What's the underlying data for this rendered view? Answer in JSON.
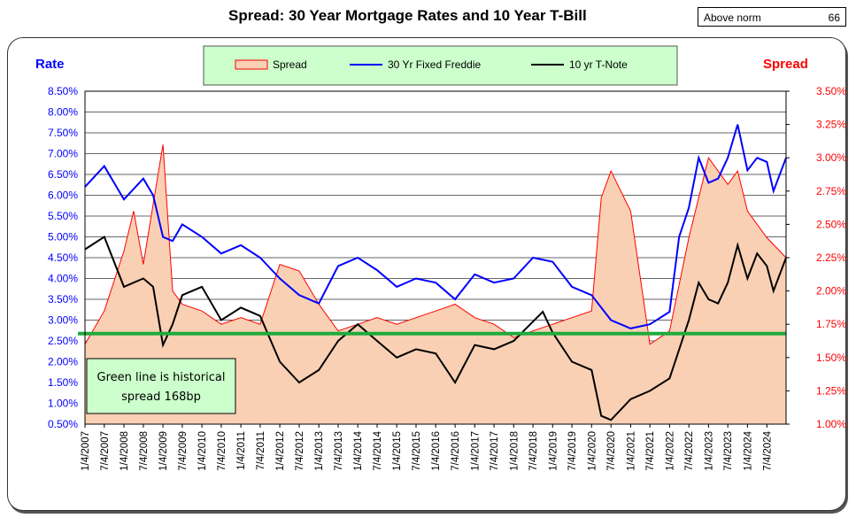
{
  "title": "Spread:  30 Year Mortgage Rates and 10 Year T-Bill",
  "norm_box": {
    "label": "Above norm",
    "value": "66"
  },
  "note": [
    "Green line is historical",
    "spread 168bp"
  ],
  "chart_data": {
    "type": "line",
    "ylabel_left": "Rate",
    "ylabel_right": "Spread",
    "ylim_left": [
      0.5,
      8.5
    ],
    "ylim_right": [
      1.0,
      3.5
    ],
    "yticks_left": [
      "0.50%",
      "1.00%",
      "1.50%",
      "2.00%",
      "2.50%",
      "3.00%",
      "3.50%",
      "4.00%",
      "4.50%",
      "5.00%",
      "5.50%",
      "6.00%",
      "6.50%",
      "7.00%",
      "7.50%",
      "8.00%",
      "8.50%"
    ],
    "yticks_right": [
      "1.00%",
      "1.25%",
      "1.50%",
      "1.75%",
      "2.00%",
      "2.25%",
      "2.50%",
      "2.75%",
      "3.00%",
      "3.25%",
      "3.50%"
    ],
    "xticks": [
      "1/4/2007",
      "7/4/2007",
      "1/4/2008",
      "7/4/2008",
      "1/4/2009",
      "7/4/2009",
      "1/4/2010",
      "7/4/2010",
      "1/4/2011",
      "7/4/2011",
      "1/4/2012",
      "7/4/2012",
      "1/4/2013",
      "7/4/2013",
      "1/4/2014",
      "7/4/2014",
      "1/4/2015",
      "7/4/2015",
      "1/4/2016",
      "7/4/2016",
      "1/4/2017",
      "7/4/2017",
      "1/4/2018",
      "7/4/2018",
      "1/4/2019",
      "7/4/2019",
      "1/4/2020",
      "7/4/2020",
      "1/4/2021",
      "7/4/2021",
      "1/4/2022",
      "7/4/2022",
      "1/4/2023",
      "7/4/2023",
      "1/4/2024",
      "7/4/2024"
    ],
    "x_range": [
      "1/4/2007",
      "12/31/2024"
    ],
    "historical_spread": 1.68,
    "legend_position": "top-center",
    "grid": true,
    "series": [
      {
        "name": "Spread",
        "axis": "right",
        "style": "area",
        "color": "#f9d0b4",
        "edge_color": "#ff0000",
        "x": [
          "1/4/2007",
          "7/4/2007",
          "1/4/2008",
          "4/4/2008",
          "7/4/2008",
          "1/4/2009",
          "4/4/2009",
          "7/4/2009",
          "1/4/2010",
          "7/4/2010",
          "1/4/2011",
          "7/4/2011",
          "1/4/2012",
          "7/4/2012",
          "1/4/2013",
          "7/4/2013",
          "1/4/2014",
          "7/4/2014",
          "1/4/2015",
          "7/4/2015",
          "1/4/2016",
          "7/4/2016",
          "1/4/2017",
          "7/4/2017",
          "1/4/2018",
          "7/4/2018",
          "1/4/2019",
          "7/4/2019",
          "1/4/2020",
          "4/4/2020",
          "7/4/2020",
          "1/4/2021",
          "7/4/2021",
          "1/4/2022",
          "7/4/2022",
          "10/4/2022",
          "1/4/2023",
          "7/4/2023",
          "10/4/2023",
          "1/4/2024",
          "7/4/2024",
          "12/31/2024"
        ],
        "values": [
          1.6,
          1.85,
          2.3,
          2.6,
          2.2,
          3.1,
          2.0,
          1.9,
          1.85,
          1.75,
          1.8,
          1.75,
          2.2,
          2.15,
          1.9,
          1.7,
          1.75,
          1.8,
          1.75,
          1.8,
          1.85,
          1.9,
          1.8,
          1.75,
          1.65,
          1.7,
          1.75,
          1.8,
          1.85,
          2.7,
          2.9,
          2.6,
          1.6,
          1.7,
          2.4,
          2.7,
          3.0,
          2.8,
          2.9,
          2.6,
          2.4,
          2.25
        ]
      },
      {
        "name": "30 Yr Fixed Freddie",
        "axis": "left",
        "color": "#0000ff",
        "x": [
          "1/4/2007",
          "7/4/2007",
          "1/4/2008",
          "7/4/2008",
          "10/4/2008",
          "1/4/2009",
          "4/4/2009",
          "7/4/2009",
          "1/4/2010",
          "7/4/2010",
          "1/4/2011",
          "7/4/2011",
          "1/4/2012",
          "7/4/2012",
          "1/4/2013",
          "7/4/2013",
          "1/4/2014",
          "7/4/2014",
          "1/4/2015",
          "7/4/2015",
          "1/4/2016",
          "7/4/2016",
          "1/4/2017",
          "7/4/2017",
          "1/4/2018",
          "7/4/2018",
          "1/4/2019",
          "7/4/2019",
          "1/4/2020",
          "7/4/2020",
          "1/4/2021",
          "7/4/2021",
          "1/4/2022",
          "4/4/2022",
          "7/4/2022",
          "10/4/2022",
          "1/4/2023",
          "4/4/2023",
          "7/4/2023",
          "10/4/2023",
          "1/4/2024",
          "4/4/2024",
          "7/4/2024",
          "9/4/2024",
          "12/31/2024"
        ],
        "values": [
          6.2,
          6.7,
          5.9,
          6.4,
          6.0,
          5.0,
          4.9,
          5.3,
          5.0,
          4.6,
          4.8,
          4.5,
          4.0,
          3.6,
          3.4,
          4.3,
          4.5,
          4.2,
          3.8,
          4.0,
          3.9,
          3.5,
          4.1,
          3.9,
          4.0,
          4.5,
          4.4,
          3.8,
          3.6,
          3.0,
          2.8,
          2.9,
          3.2,
          5.0,
          5.7,
          6.9,
          6.3,
          6.4,
          6.9,
          7.7,
          6.6,
          6.9,
          6.8,
          6.1,
          6.9
        ]
      },
      {
        "name": "10 yr T-Note",
        "axis": "left",
        "color": "#000000",
        "x": [
          "1/4/2007",
          "7/4/2007",
          "1/4/2008",
          "7/4/2008",
          "10/4/2008",
          "1/4/2009",
          "4/4/2009",
          "7/4/2009",
          "1/4/2010",
          "7/4/2010",
          "1/4/2011",
          "7/4/2011",
          "1/4/2012",
          "7/4/2012",
          "1/4/2013",
          "7/4/2013",
          "1/4/2014",
          "7/4/2014",
          "1/4/2015",
          "7/4/2015",
          "1/4/2016",
          "7/4/2016",
          "1/4/2017",
          "7/4/2017",
          "1/4/2018",
          "10/4/2018",
          "1/4/2019",
          "7/4/2019",
          "1/4/2020",
          "4/4/2020",
          "7/4/2020",
          "1/4/2021",
          "7/4/2021",
          "1/4/2022",
          "7/4/2022",
          "10/4/2022",
          "1/4/2023",
          "4/4/2023",
          "7/4/2023",
          "10/4/2023",
          "1/4/2024",
          "4/4/2024",
          "7/4/2024",
          "9/4/2024",
          "12/31/2024"
        ],
        "values": [
          4.7,
          5.0,
          3.8,
          4.0,
          3.8,
          2.4,
          2.9,
          3.6,
          3.8,
          3.0,
          3.3,
          3.1,
          2.0,
          1.5,
          1.8,
          2.5,
          2.9,
          2.5,
          2.1,
          2.3,
          2.2,
          1.5,
          2.4,
          2.3,
          2.5,
          3.2,
          2.7,
          2.0,
          1.8,
          0.7,
          0.6,
          1.1,
          1.3,
          1.6,
          3.0,
          3.9,
          3.5,
          3.4,
          3.9,
          4.8,
          4.0,
          4.6,
          4.3,
          3.7,
          4.5
        ]
      }
    ]
  }
}
